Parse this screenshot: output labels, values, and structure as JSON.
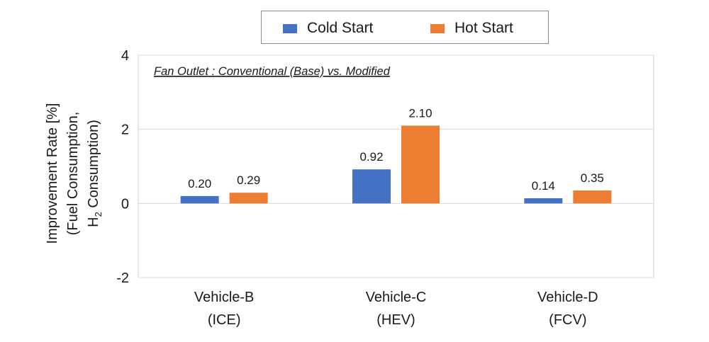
{
  "chart_data": {
    "type": "bar",
    "title": "",
    "annotation": "Fan Outlet : Conventional (Base) vs. Modified",
    "ylabel_lines": [
      "Improvement  Rate  [%]",
      "(Fuel Consumption,",
      "H",
      "2",
      " Consumption)"
    ],
    "ylim": [
      -2,
      4
    ],
    "yticks": [
      -2,
      0,
      2,
      4
    ],
    "categories": [
      {
        "line1": "Vehicle-B",
        "line2": "(ICE)"
      },
      {
        "line1": "Vehicle-C",
        "line2": "(HEV)"
      },
      {
        "line1": "Vehicle-D",
        "line2": "(FCV)"
      }
    ],
    "series": [
      {
        "name": "Cold Start",
        "color": "#4472C4",
        "values": [
          0.2,
          0.92,
          0.14
        ],
        "labels": [
          "0.20",
          "0.92",
          "0.14"
        ]
      },
      {
        "name": "Hot Start",
        "color": "#ED7D31",
        "values": [
          0.29,
          2.1,
          0.35
        ],
        "labels": [
          "0.29",
          "2.10",
          "0.35"
        ]
      }
    ],
    "grid": true,
    "legend_position": "top"
  }
}
